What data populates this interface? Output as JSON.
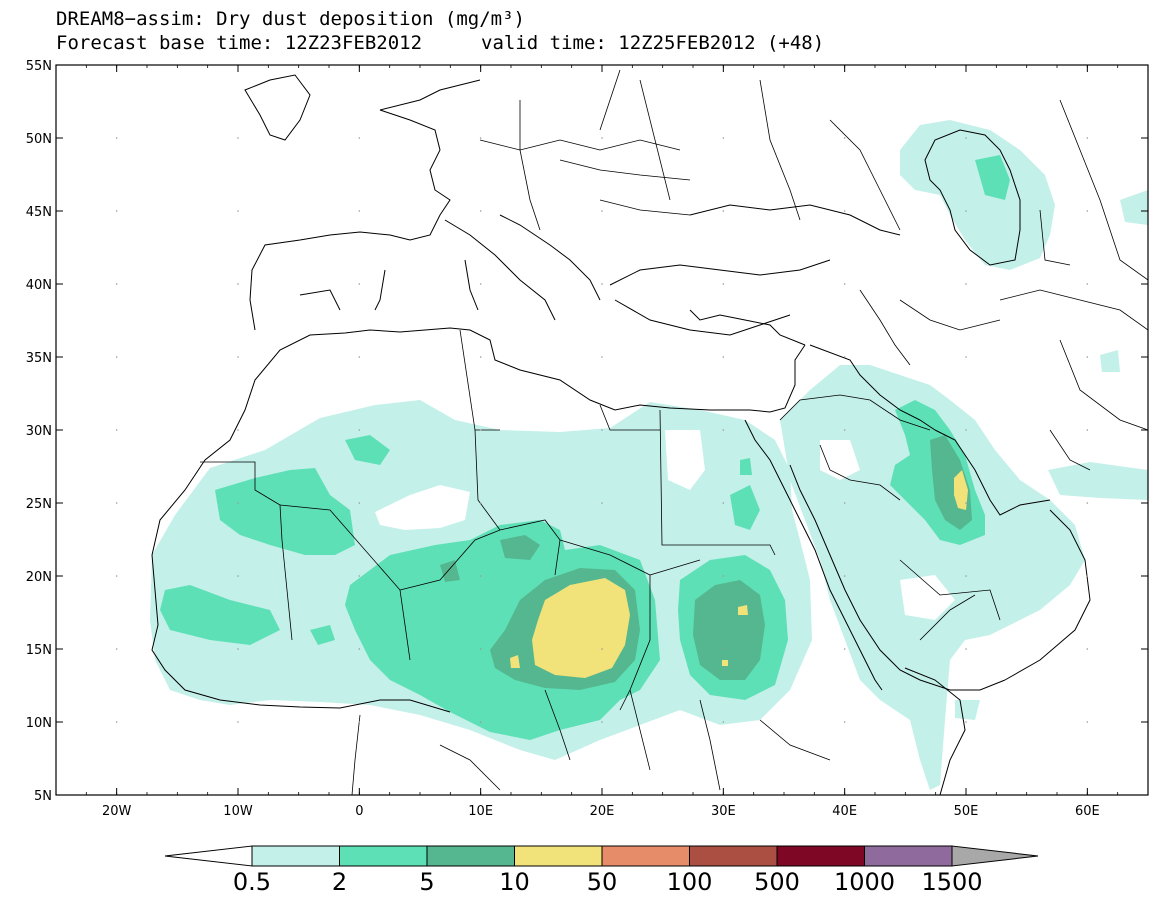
{
  "title": {
    "line1": "DREAM8−assim: Dry dust deposition (mg/m³)",
    "line2_left": "Forecast base time: 12Z23FEB2012",
    "line2_right": "valid time: 12Z25FEB2012 (+48)"
  },
  "axes": {
    "lat_labels": [
      "55N",
      "50N",
      "45N",
      "40N",
      "35N",
      "30N",
      "25N",
      "20N",
      "15N",
      "10N",
      "5N"
    ],
    "lon_labels": [
      "20W",
      "10W",
      "0",
      "10E",
      "20E",
      "30E",
      "40E",
      "50E",
      "60E"
    ]
  },
  "colorbar": {
    "labels": [
      "0.5",
      "2",
      "5",
      "10",
      "50",
      "100",
      "500",
      "1000",
      "1500"
    ],
    "colors": [
      "#c4f0ea",
      "#5ee0b6",
      "#54b78f",
      "#f2e27a",
      "#e68c68",
      "#aa4f42",
      "#7d0725",
      "#8f6a9c"
    ],
    "under_color": "#ffffff",
    "over_color": "#a8a8a8"
  },
  "map_colors": {
    "level1": "#c4f0ea",
    "level2": "#5ee0b6",
    "level3": "#54b78f",
    "level4": "#f2e27a"
  }
}
